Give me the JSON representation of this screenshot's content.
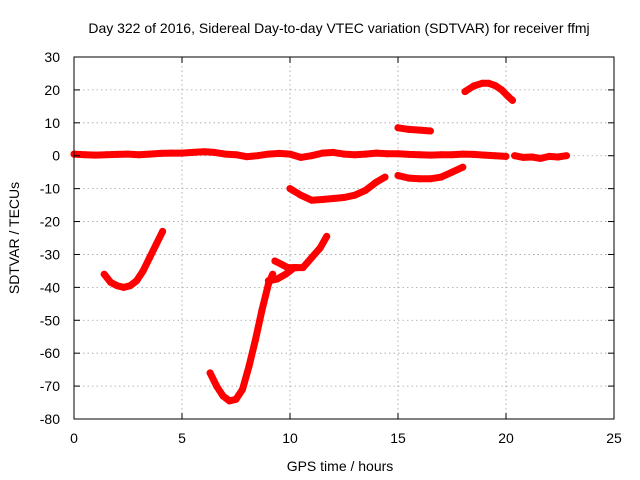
{
  "chart_data": {
    "type": "line",
    "title": "Day 322 of 2016, Sidereal Day-to-day VTEC variation (SDTVAR) for receiver ffmj",
    "xlabel": "GPS time / hours",
    "ylabel": "SDTVAR / TECUs",
    "xlim": [
      0,
      25
    ],
    "ylim": [
      -80,
      30
    ],
    "x_ticks": [
      0,
      5,
      10,
      15,
      20,
      25
    ],
    "y_ticks": [
      -80,
      -70,
      -60,
      -50,
      -40,
      -30,
      -20,
      -10,
      0,
      10,
      20,
      30
    ],
    "grid": true,
    "legend": "none",
    "series_color": "#ff0000",
    "series": [
      {
        "x": [
          0.0,
          0.5,
          1.0,
          1.5,
          2.0,
          2.5,
          3.0,
          3.5,
          4.0,
          4.5,
          5.0,
          5.5,
          6.0,
          6.5,
          7.0,
          7.5,
          8.0,
          8.5,
          9.0,
          9.5,
          10.0,
          10.5,
          11.0,
          11.5,
          12.0,
          12.5,
          13.0,
          13.5,
          14.0,
          14.5,
          15.0,
          15.5,
          16.0,
          16.5,
          17.0,
          17.5,
          18.0,
          18.5,
          19.0,
          19.5,
          20.0
        ],
        "y": [
          0.5,
          0.3,
          0.2,
          0.3,
          0.4,
          0.5,
          0.3,
          0.5,
          0.7,
          0.8,
          0.8,
          1.0,
          1.2,
          1.0,
          0.5,
          0.3,
          -0.3,
          0.0,
          0.5,
          0.7,
          0.5,
          -0.5,
          0.0,
          0.8,
          1.0,
          0.5,
          0.3,
          0.5,
          0.8,
          0.6,
          0.6,
          0.4,
          0.3,
          0.2,
          0.3,
          0.3,
          0.5,
          0.4,
          0.2,
          0.0,
          -0.2
        ]
      },
      {
        "x": [
          20.4,
          20.8,
          21.2,
          21.6,
          22.0,
          22.4,
          22.8
        ],
        "y": [
          0.0,
          -0.5,
          -0.4,
          -0.8,
          -0.2,
          -0.4,
          0.0
        ]
      },
      {
        "x": [
          1.4,
          1.7,
          2.0,
          2.3,
          2.6,
          2.9,
          3.2,
          3.5,
          3.8,
          4.1
        ],
        "y": [
          -36,
          -38.5,
          -39.5,
          -40,
          -39.5,
          -38,
          -35,
          -31,
          -27,
          -23
        ]
      },
      {
        "x": [
          6.3,
          6.6,
          6.9,
          7.2,
          7.5,
          7.8,
          8.1,
          8.4,
          8.7,
          9.0,
          9.2
        ],
        "y": [
          -66,
          -70,
          -73,
          -74.5,
          -74,
          -71,
          -64,
          -56,
          -47,
          -39,
          -36
        ]
      },
      {
        "x": [
          9.0,
          9.4,
          9.8,
          10.2,
          10.6,
          11.0,
          11.4,
          11.7
        ],
        "y": [
          -38,
          -37.5,
          -36,
          -34,
          -34,
          -31,
          -28,
          -24.5
        ]
      },
      {
        "x": [
          9.3,
          9.6,
          9.9,
          10.3
        ],
        "y": [
          -32,
          -33,
          -34,
          -34
        ]
      },
      {
        "x": [
          10.0,
          10.5,
          11.0,
          11.5,
          12.0,
          12.5,
          13.0,
          13.5,
          14.0,
          14.4
        ],
        "y": [
          -10,
          -12,
          -13.5,
          -13.3,
          -13,
          -12.7,
          -12,
          -10.5,
          -8,
          -6.5
        ]
      },
      {
        "x": [
          15.0,
          15.5,
          16.0,
          16.5
        ],
        "y": [
          8.5,
          8.0,
          7.8,
          7.5
        ]
      },
      {
        "x": [
          15.0,
          15.5,
          16.0,
          16.5,
          17.0,
          17.5,
          18.0
        ],
        "y": [
          -6,
          -6.8,
          -7,
          -7,
          -6.5,
          -5,
          -3.5
        ]
      },
      {
        "x": [
          18.1,
          18.5,
          18.9,
          19.2,
          19.5,
          19.8,
          20.1,
          20.3
        ],
        "y": [
          19.5,
          21.2,
          22,
          22,
          21.3,
          20,
          18,
          16.8
        ]
      }
    ]
  }
}
